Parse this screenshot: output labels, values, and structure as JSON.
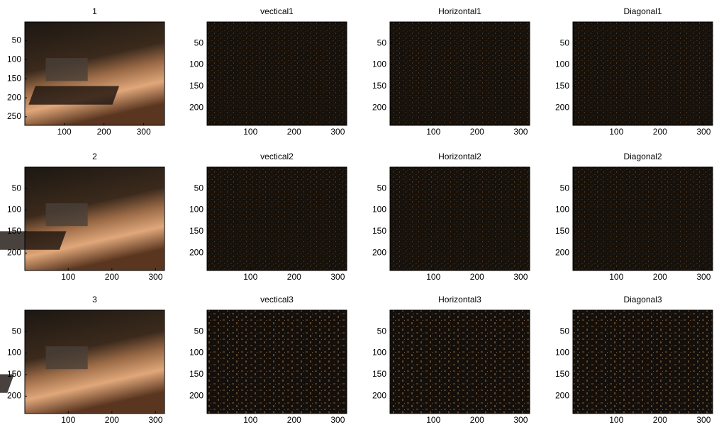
{
  "chart_data": [
    {
      "type": "image",
      "title": "1",
      "xlim": [
        0.5,
        352.5
      ],
      "ylim": [
        0.5,
        272.5
      ],
      "yreverse": true,
      "xticks": [
        100,
        200,
        300
      ],
      "yticks": [
        50,
        100,
        150,
        200,
        250
      ]
    },
    {
      "type": "image",
      "title": "vectical1",
      "xlim": [
        0.5,
        320.5
      ],
      "ylim": [
        0.5,
        240.5
      ],
      "yreverse": true,
      "xticks": [
        100,
        200,
        300
      ],
      "yticks": [
        50,
        100,
        150,
        200
      ]
    },
    {
      "type": "image",
      "title": "Horizontal1",
      "xlim": [
        0.5,
        320.5
      ],
      "ylim": [
        0.5,
        240.5
      ],
      "yreverse": true,
      "xticks": [
        100,
        200,
        300
      ],
      "yticks": [
        50,
        100,
        150,
        200
      ]
    },
    {
      "type": "image",
      "title": "Diagonal1",
      "xlim": [
        0.5,
        320.5
      ],
      "ylim": [
        0.5,
        240.5
      ],
      "yreverse": true,
      "xticks": [
        100,
        200,
        300
      ],
      "yticks": [
        50,
        100,
        150,
        200
      ]
    },
    {
      "type": "image",
      "title": "2",
      "xlim": [
        0.5,
        320.5
      ],
      "ylim": [
        0.5,
        240.5
      ],
      "yreverse": true,
      "xticks": [
        100,
        200,
        300
      ],
      "yticks": [
        50,
        100,
        150,
        200
      ]
    },
    {
      "type": "image",
      "title": "vectical2",
      "xlim": [
        0.5,
        320.5
      ],
      "ylim": [
        0.5,
        240.5
      ],
      "yreverse": true,
      "xticks": [
        100,
        200,
        300
      ],
      "yticks": [
        50,
        100,
        150,
        200
      ]
    },
    {
      "type": "image",
      "title": "Horizontal2",
      "xlim": [
        0.5,
        320.5
      ],
      "ylim": [
        0.5,
        240.5
      ],
      "yreverse": true,
      "xticks": [
        100,
        200,
        300
      ],
      "yticks": [
        50,
        100,
        150,
        200
      ]
    },
    {
      "type": "image",
      "title": "Diagonal2",
      "xlim": [
        0.5,
        320.5
      ],
      "ylim": [
        0.5,
        240.5
      ],
      "yreverse": true,
      "xticks": [
        100,
        200,
        300
      ],
      "yticks": [
        50,
        100,
        150,
        200
      ]
    },
    {
      "type": "image",
      "title": "3",
      "xlim": [
        0.5,
        320.5
      ],
      "ylim": [
        0.5,
        240.5
      ],
      "yreverse": true,
      "xticks": [
        100,
        200,
        300
      ],
      "yticks": [
        50,
        100,
        150,
        200
      ]
    },
    {
      "type": "image",
      "title": "vectical3",
      "xlim": [
        0.5,
        320.5
      ],
      "ylim": [
        0.5,
        240.5
      ],
      "yreverse": true,
      "xticks": [
        100,
        200,
        300
      ],
      "yticks": [
        50,
        100,
        150,
        200
      ]
    },
    {
      "type": "image",
      "title": "Horizontal3",
      "xlim": [
        0.5,
        320.5
      ],
      "ylim": [
        0.5,
        240.5
      ],
      "yreverse": true,
      "xticks": [
        100,
        200,
        300
      ],
      "yticks": [
        50,
        100,
        150,
        200
      ]
    },
    {
      "type": "image",
      "title": "Diagonal3",
      "xlim": [
        0.5,
        320.5
      ],
      "ylim": [
        0.5,
        240.5
      ],
      "yreverse": true,
      "xticks": [
        100,
        200,
        300
      ],
      "yticks": [
        50,
        100,
        150,
        200
      ]
    }
  ]
}
